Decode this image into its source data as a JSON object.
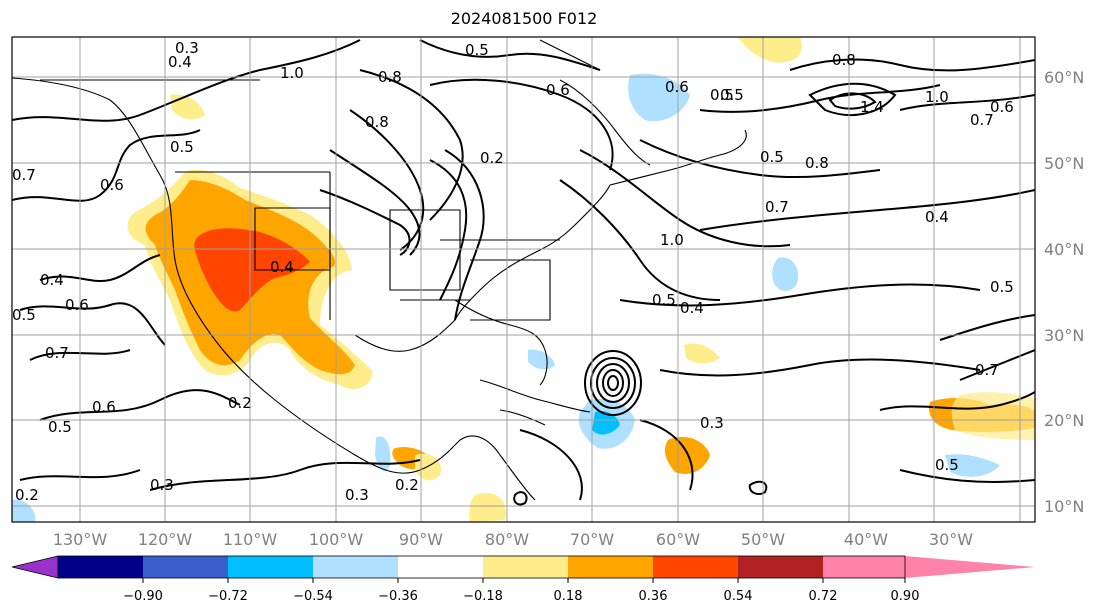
{
  "title": "2024081500 F012",
  "map": {
    "lon_labels": [
      "130°W",
      "120°W",
      "110°W",
      "100°W",
      "90°W",
      "80°W",
      "70°W",
      "60°W",
      "50°W",
      "40°W",
      "30°W"
    ],
    "lat_labels": [
      "60°N",
      "50°N",
      "40°N",
      "30°N",
      "20°N",
      "10°N"
    ],
    "contour_labels": [
      "0.3",
      "0.4",
      "1.0",
      "0.8",
      "0.5",
      "0.6",
      "0.8",
      "0.5",
      "0.2",
      "0.4",
      "0.6",
      "0.5",
      "0.7",
      "0.8",
      "1.4",
      "1.0",
      "0.7",
      "0.6",
      "0.5",
      "0.8",
      "0.7",
      "0.4",
      "1.0",
      "0.5",
      "0.4",
      "0.5",
      "0.7",
      "0.5",
      "0.6",
      "0.6",
      "0.4",
      "0.5",
      "0.2",
      "0.3",
      "0.3",
      "0.2",
      "0.5",
      "0.3",
      "0.2",
      "0.5",
      "0.6",
      "0.7"
    ]
  },
  "colorbar": {
    "colors": [
      "#9932cc",
      "#00008b",
      "#3a5fcd",
      "#00bfff",
      "#b0e0ff",
      "#ffffff",
      "#ffec8b",
      "#ffa500",
      "#ff4500",
      "#b22222",
      "#ff82ab"
    ],
    "tick_labels": [
      "−0.90",
      "−0.72",
      "−0.54",
      "−0.36",
      "−0.18",
      "0.18",
      "0.36",
      "0.54",
      "0.72",
      "0.90"
    ]
  }
}
